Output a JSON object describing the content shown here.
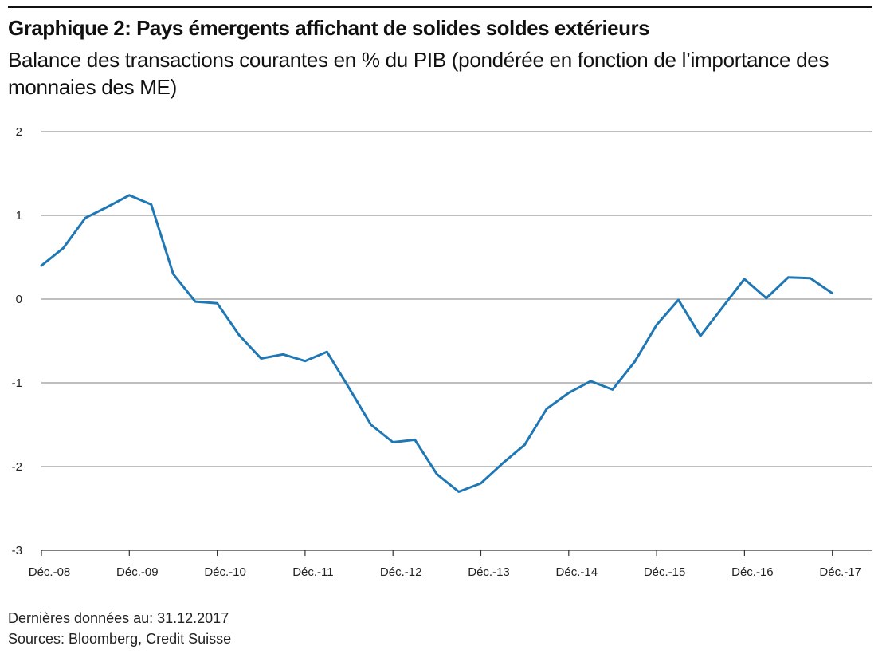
{
  "title": "Graphique 2: Pays émergents affichant de solides soldes extérieurs",
  "subtitle": "Balance des transactions courantes en % du PIB (pondérée en fonction de l’importance des monnaies des ME)",
  "footnotes": {
    "last_data": "Dernières données au: 31.12.2017",
    "sources": "Sources: Bloomberg, Credit Suisse"
  },
  "colors": {
    "series": "#1f77b4",
    "grid": "#999999",
    "axis": "#333333"
  },
  "chart_data": {
    "type": "line",
    "title": "Graphique 2: Pays émergents affichant de solides soldes extérieurs",
    "subtitle": "Balance des transactions courantes en % du PIB (pondérée en fonction de l’importance des monnaies des ME)",
    "xlabel": "",
    "ylabel": "",
    "ylim": [
      -3,
      2
    ],
    "yticks": [
      2,
      1,
      0,
      -1,
      -2,
      -3
    ],
    "xticks": [
      "Déc.-08",
      "Déc.-09",
      "Déc.-10",
      "Déc.-11",
      "Déc.-12",
      "Déc.-13",
      "Déc.-14",
      "Déc.-15",
      "Déc.-16",
      "Déc.-17"
    ],
    "grid": true,
    "legend": "none",
    "x_frequency": "quarterly",
    "series": [
      {
        "x": [
          "Déc.-08",
          "Mar.-09",
          "Juin-09",
          "Sep.-09",
          "Déc.-09",
          "Mar.-10",
          "Juin-10",
          "Sep.-10",
          "Déc.-10",
          "Mar.-11",
          "Juin-11",
          "Sep.-11",
          "Déc.-11",
          "Mar.-12",
          "Juin-12",
          "Sep.-12",
          "Déc.-12",
          "Mar.-13",
          "Juin-13",
          "Sep.-13",
          "Déc.-13",
          "Mar.-14",
          "Juin-14",
          "Sep.-14",
          "Déc.-14",
          "Mar.-15",
          "Juin-15",
          "Sep.-15",
          "Déc.-15",
          "Mar.-16",
          "Juin-16",
          "Sep.-16",
          "Déc.-16",
          "Mar.-17",
          "Juin-17",
          "Sep.-17",
          "Déc.-17"
        ],
        "values": [
          0.4,
          0.61,
          0.97,
          1.1,
          1.24,
          1.13,
          0.3,
          -0.03,
          -0.05,
          -0.43,
          -0.71,
          -0.66,
          -0.74,
          -0.63,
          -1.06,
          -1.5,
          -1.71,
          -1.68,
          -2.09,
          -2.3,
          -2.2,
          -1.96,
          -1.74,
          -1.31,
          -1.12,
          -0.98,
          -1.08,
          -0.75,
          -0.31,
          -0.01,
          -0.44,
          -0.1,
          0.24,
          0.01,
          0.26,
          0.25,
          0.07
        ]
      }
    ]
  }
}
